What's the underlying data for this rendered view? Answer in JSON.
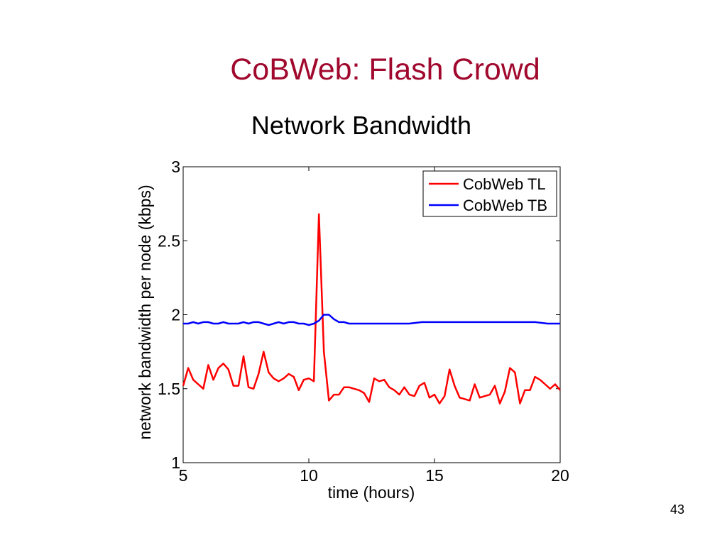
{
  "slide": {
    "title": "CoBWeb: Flash Crowd",
    "page_number": "43"
  },
  "chart_data": {
    "type": "line",
    "title": "Network Bandwidth",
    "xlabel": "time (hours)",
    "ylabel": "network bandwidth per node (kbps)",
    "xlim": [
      5,
      20
    ],
    "ylim": [
      1,
      3
    ],
    "xticks": [
      "5",
      "10",
      "15",
      "20"
    ],
    "yticks": [
      "1",
      "1.5",
      "2",
      "2.5",
      "3"
    ],
    "grid": false,
    "legend_position": "top-right",
    "series": [
      {
        "name": "CobWeb TL",
        "color": "#ff0000",
        "x": [
          5.0,
          5.2,
          5.4,
          5.6,
          5.8,
          6.0,
          6.2,
          6.4,
          6.6,
          6.8,
          7.0,
          7.2,
          7.4,
          7.6,
          7.8,
          8.0,
          8.2,
          8.4,
          8.6,
          8.8,
          9.0,
          9.2,
          9.4,
          9.6,
          9.8,
          10.0,
          10.2,
          10.4,
          10.6,
          10.8,
          11.0,
          11.2,
          11.4,
          11.6,
          11.8,
          12.0,
          12.2,
          12.4,
          12.6,
          12.8,
          13.0,
          13.2,
          13.4,
          13.6,
          13.8,
          14.0,
          14.2,
          14.4,
          14.6,
          14.8,
          15.0,
          15.2,
          15.4,
          15.6,
          15.8,
          16.0,
          16.2,
          16.4,
          16.6,
          16.8,
          17.0,
          17.2,
          17.4,
          17.6,
          17.8,
          18.0,
          18.2,
          18.4,
          18.6,
          18.8,
          19.0,
          19.2,
          19.4,
          19.6,
          19.8,
          20.0
        ],
        "y": [
          1.52,
          1.64,
          1.56,
          1.53,
          1.5,
          1.66,
          1.56,
          1.64,
          1.67,
          1.63,
          1.52,
          1.52,
          1.72,
          1.51,
          1.5,
          1.6,
          1.75,
          1.61,
          1.57,
          1.55,
          1.57,
          1.6,
          1.58,
          1.49,
          1.56,
          1.57,
          1.55,
          2.68,
          1.75,
          1.42,
          1.46,
          1.46,
          1.51,
          1.51,
          1.5,
          1.49,
          1.47,
          1.41,
          1.57,
          1.55,
          1.56,
          1.51,
          1.49,
          1.46,
          1.51,
          1.46,
          1.45,
          1.52,
          1.54,
          1.44,
          1.46,
          1.4,
          1.45,
          1.63,
          1.52,
          1.44,
          1.43,
          1.42,
          1.53,
          1.44,
          1.45,
          1.46,
          1.52,
          1.4,
          1.48,
          1.64,
          1.61,
          1.4,
          1.49,
          1.49,
          1.58,
          1.56,
          1.53,
          1.5,
          1.53,
          1.49
        ]
      },
      {
        "name": "CobWeb TB",
        "color": "#0000ff",
        "x": [
          5.0,
          5.2,
          5.4,
          5.6,
          5.8,
          6.0,
          6.2,
          6.4,
          6.6,
          6.8,
          7.0,
          7.2,
          7.4,
          7.6,
          7.8,
          8.0,
          8.2,
          8.4,
          8.6,
          8.8,
          9.0,
          9.2,
          9.4,
          9.6,
          9.8,
          10.0,
          10.2,
          10.4,
          10.6,
          10.8,
          11.0,
          11.2,
          11.4,
          11.6,
          11.8,
          12.0,
          12.5,
          13.0,
          13.5,
          14.0,
          14.5,
          15.0,
          15.5,
          16.0,
          16.5,
          17.0,
          17.5,
          18.0,
          18.5,
          19.0,
          19.5,
          20.0
        ],
        "y": [
          1.94,
          1.94,
          1.95,
          1.94,
          1.95,
          1.95,
          1.94,
          1.94,
          1.95,
          1.94,
          1.94,
          1.94,
          1.95,
          1.94,
          1.95,
          1.95,
          1.94,
          1.93,
          1.94,
          1.95,
          1.94,
          1.95,
          1.95,
          1.94,
          1.94,
          1.93,
          1.94,
          1.96,
          2.0,
          2.0,
          1.97,
          1.95,
          1.95,
          1.94,
          1.94,
          1.94,
          1.94,
          1.94,
          1.94,
          1.94,
          1.95,
          1.95,
          1.95,
          1.95,
          1.95,
          1.95,
          1.95,
          1.95,
          1.95,
          1.95,
          1.94,
          1.94
        ]
      }
    ]
  }
}
